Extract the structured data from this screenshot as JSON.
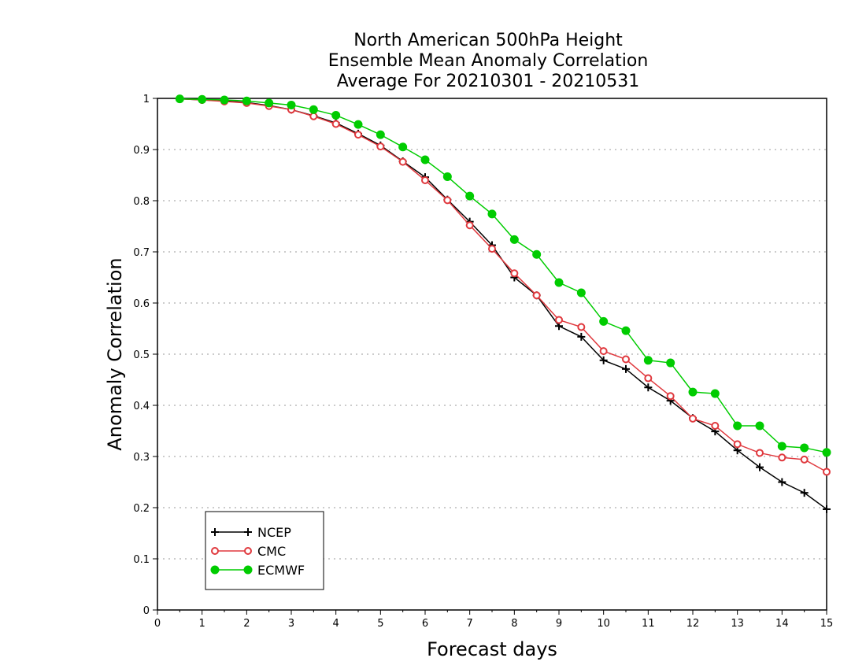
{
  "chart_data": {
    "type": "line",
    "title": [
      "North American 500hPa Height",
      "Ensemble Mean Anomaly Correlation",
      "Average For 20210301 - 20210531"
    ],
    "xlabel": "Forecast days",
    "ylabel": "Anomaly Correlation",
    "xlim": [
      0,
      15
    ],
    "ylim": [
      0,
      1
    ],
    "x_ticks": [
      "0",
      "1",
      "2",
      "3",
      "4",
      "5",
      "6",
      "7",
      "8",
      "9",
      "10",
      "11",
      "12",
      "13",
      "14",
      "15"
    ],
    "y_ticks": [
      "0",
      "0.1",
      "0.2",
      "0.3",
      "0.4",
      "0.5",
      "0.6",
      "0.7",
      "0.8",
      "0.9",
      "1"
    ],
    "grid": "horizontal dotted",
    "legend_position": "bottom-left",
    "x": [
      0.5,
      1,
      1.5,
      2,
      2.5,
      3,
      3.5,
      4,
      4.5,
      5,
      5.5,
      6,
      6.5,
      7,
      7.5,
      8,
      8.5,
      9,
      9.5,
      10,
      10.5,
      11,
      11.5,
      12,
      12.5,
      13,
      13.5,
      14,
      14.5,
      15
    ],
    "series": [
      {
        "name": "NCEP",
        "color": "#000000",
        "marker": "plus",
        "values": [
          0.999,
          0.997,
          0.995,
          0.992,
          0.986,
          0.978,
          0.966,
          0.952,
          0.931,
          0.908,
          0.877,
          0.846,
          0.802,
          0.759,
          0.713,
          0.65,
          0.615,
          0.555,
          0.534,
          0.488,
          0.471,
          0.435,
          0.409,
          0.375,
          0.349,
          0.312,
          0.279,
          0.25,
          0.229,
          0.197
        ]
      },
      {
        "name": "CMC",
        "color": "#e0393e",
        "marker": "open-circle",
        "values": [
          0.999,
          0.997,
          0.994,
          0.991,
          0.985,
          0.978,
          0.965,
          0.95,
          0.929,
          0.906,
          0.876,
          0.84,
          0.801,
          0.752,
          0.706,
          0.658,
          0.615,
          0.567,
          0.553,
          0.506,
          0.49,
          0.453,
          0.418,
          0.374,
          0.36,
          0.324,
          0.307,
          0.298,
          0.294,
          0.27
        ]
      },
      {
        "name": "ECMWF",
        "color": "#00cc00",
        "marker": "filled-circle",
        "values": [
          0.999,
          0.998,
          0.997,
          0.995,
          0.991,
          0.987,
          0.978,
          0.967,
          0.949,
          0.929,
          0.905,
          0.88,
          0.847,
          0.809,
          0.774,
          0.724,
          0.695,
          0.64,
          0.62,
          0.564,
          0.546,
          0.488,
          0.483,
          0.426,
          0.423,
          0.36,
          0.36,
          0.32,
          0.317,
          0.308
        ]
      }
    ]
  }
}
